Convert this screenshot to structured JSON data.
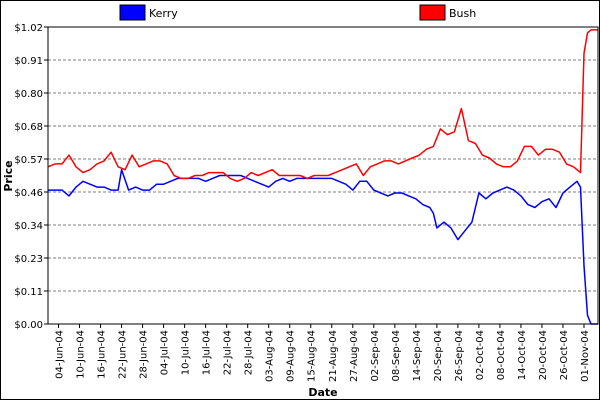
{
  "chart_data": {
    "type": "line",
    "title": "",
    "xlabel": "Date",
    "ylabel": "Price",
    "yticks": [
      "$0.00",
      "$0.11",
      "$0.23",
      "$0.34",
      "$0.46",
      "$0.57",
      "$0.68",
      "$0.80",
      "$0.91",
      "$1.02"
    ],
    "ylim": [
      0,
      1.02
    ],
    "xlim": [
      "2004-06-01",
      "2004-11-05"
    ],
    "xticks": [
      "04-Jun-04",
      "10-Jun-04",
      "16-Jun-04",
      "22-Jun-04",
      "28-Jun-04",
      "04-Jul-04",
      "10-Jul-04",
      "16-Jul-04",
      "22-Jul-04",
      "28-Jul-04",
      "03-Aug-04",
      "09-Aug-04",
      "15-Aug-04",
      "21-Aug-04",
      "27-Aug-04",
      "02-Sep-04",
      "08-Sep-04",
      "14-Sep-04",
      "20-Sep-04",
      "26-Sep-04",
      "02-Oct-04",
      "08-Oct-04",
      "14-Oct-04",
      "20-Oct-04",
      "26-Oct-04",
      "01-Nov-04"
    ],
    "grid": true,
    "legend_position": "top",
    "colors": {
      "Kerry": "#0000ff",
      "Bush": "#ff0000"
    },
    "series": [
      {
        "name": "Kerry",
        "x": [
          "2004-06-01",
          "2004-06-03",
          "2004-06-05",
          "2004-06-07",
          "2004-06-09",
          "2004-06-11",
          "2004-06-13",
          "2004-06-15",
          "2004-06-17",
          "2004-06-19",
          "2004-06-21",
          "2004-06-22",
          "2004-06-24",
          "2004-06-26",
          "2004-06-28",
          "2004-06-30",
          "2004-07-02",
          "2004-07-04",
          "2004-07-06",
          "2004-07-08",
          "2004-07-10",
          "2004-07-12",
          "2004-07-14",
          "2004-07-16",
          "2004-07-18",
          "2004-07-20",
          "2004-07-22",
          "2004-07-24",
          "2004-07-26",
          "2004-07-28",
          "2004-07-30",
          "2004-08-01",
          "2004-08-03",
          "2004-08-05",
          "2004-08-07",
          "2004-08-09",
          "2004-08-11",
          "2004-08-13",
          "2004-08-15",
          "2004-08-17",
          "2004-08-19",
          "2004-08-21",
          "2004-08-23",
          "2004-08-25",
          "2004-08-27",
          "2004-08-29",
          "2004-08-31",
          "2004-09-02",
          "2004-09-04",
          "2004-09-06",
          "2004-09-08",
          "2004-09-10",
          "2004-09-12",
          "2004-09-14",
          "2004-09-16",
          "2004-09-18",
          "2004-09-19",
          "2004-09-20",
          "2004-09-22",
          "2004-09-24",
          "2004-09-26",
          "2004-09-28",
          "2004-09-30",
          "2004-10-02",
          "2004-10-04",
          "2004-10-06",
          "2004-10-08",
          "2004-10-10",
          "2004-10-12",
          "2004-10-14",
          "2004-10-16",
          "2004-10-18",
          "2004-10-20",
          "2004-10-22",
          "2004-10-24",
          "2004-10-26",
          "2004-10-28",
          "2004-10-30",
          "2004-10-31",
          "2004-11-01",
          "2004-11-02",
          "2004-11-03",
          "2004-11-05"
        ],
        "values": [
          0.46,
          0.46,
          0.46,
          0.44,
          0.47,
          0.49,
          0.48,
          0.47,
          0.47,
          0.46,
          0.46,
          0.53,
          0.46,
          0.47,
          0.46,
          0.46,
          0.48,
          0.48,
          0.49,
          0.5,
          0.5,
          0.5,
          0.5,
          0.49,
          0.5,
          0.51,
          0.51,
          0.51,
          0.51,
          0.5,
          0.49,
          0.48,
          0.47,
          0.49,
          0.5,
          0.49,
          0.5,
          0.5,
          0.5,
          0.5,
          0.5,
          0.5,
          0.49,
          0.48,
          0.46,
          0.49,
          0.49,
          0.46,
          0.45,
          0.44,
          0.45,
          0.45,
          0.44,
          0.43,
          0.41,
          0.4,
          0.38,
          0.33,
          0.35,
          0.33,
          0.29,
          0.32,
          0.35,
          0.45,
          0.43,
          0.45,
          0.46,
          0.47,
          0.46,
          0.44,
          0.41,
          0.4,
          0.42,
          0.43,
          0.4,
          0.45,
          0.47,
          0.49,
          0.47,
          0.2,
          0.03,
          0.0,
          0.0
        ]
      },
      {
        "name": "Bush",
        "x": [
          "2004-06-01",
          "2004-06-03",
          "2004-06-05",
          "2004-06-07",
          "2004-06-09",
          "2004-06-11",
          "2004-06-13",
          "2004-06-15",
          "2004-06-17",
          "2004-06-19",
          "2004-06-21",
          "2004-06-23",
          "2004-06-25",
          "2004-06-27",
          "2004-06-29",
          "2004-07-01",
          "2004-07-03",
          "2004-07-05",
          "2004-07-07",
          "2004-07-09",
          "2004-07-11",
          "2004-07-13",
          "2004-07-15",
          "2004-07-17",
          "2004-07-19",
          "2004-07-21",
          "2004-07-23",
          "2004-07-25",
          "2004-07-27",
          "2004-07-29",
          "2004-07-31",
          "2004-08-02",
          "2004-08-04",
          "2004-08-06",
          "2004-08-08",
          "2004-08-10",
          "2004-08-12",
          "2004-08-14",
          "2004-08-16",
          "2004-08-18",
          "2004-08-20",
          "2004-08-22",
          "2004-08-24",
          "2004-08-26",
          "2004-08-28",
          "2004-08-30",
          "2004-09-01",
          "2004-09-03",
          "2004-09-05",
          "2004-09-07",
          "2004-09-09",
          "2004-09-11",
          "2004-09-13",
          "2004-09-15",
          "2004-09-17",
          "2004-09-19",
          "2004-09-21",
          "2004-09-23",
          "2004-09-25",
          "2004-09-27",
          "2004-09-29",
          "2004-10-01",
          "2004-10-03",
          "2004-10-05",
          "2004-10-07",
          "2004-10-09",
          "2004-10-11",
          "2004-10-13",
          "2004-10-15",
          "2004-10-17",
          "2004-10-19",
          "2004-10-21",
          "2004-10-23",
          "2004-10-25",
          "2004-10-27",
          "2004-10-29",
          "2004-10-31",
          "2004-11-01",
          "2004-11-02",
          "2004-11-03",
          "2004-11-05"
        ],
        "values": [
          0.54,
          0.55,
          0.55,
          0.58,
          0.54,
          0.52,
          0.53,
          0.55,
          0.56,
          0.59,
          0.54,
          0.53,
          0.58,
          0.54,
          0.55,
          0.56,
          0.56,
          0.55,
          0.51,
          0.5,
          0.5,
          0.51,
          0.51,
          0.52,
          0.52,
          0.52,
          0.5,
          0.49,
          0.5,
          0.52,
          0.51,
          0.52,
          0.53,
          0.51,
          0.51,
          0.51,
          0.51,
          0.5,
          0.51,
          0.51,
          0.51,
          0.52,
          0.53,
          0.54,
          0.55,
          0.51,
          0.54,
          0.55,
          0.56,
          0.56,
          0.55,
          0.56,
          0.57,
          0.58,
          0.6,
          0.61,
          0.67,
          0.65,
          0.66,
          0.74,
          0.63,
          0.62,
          0.58,
          0.57,
          0.55,
          0.54,
          0.54,
          0.56,
          0.61,
          0.61,
          0.58,
          0.6,
          0.6,
          0.59,
          0.55,
          0.54,
          0.52,
          0.93,
          1.0,
          1.01,
          1.01
        ]
      }
    ]
  }
}
